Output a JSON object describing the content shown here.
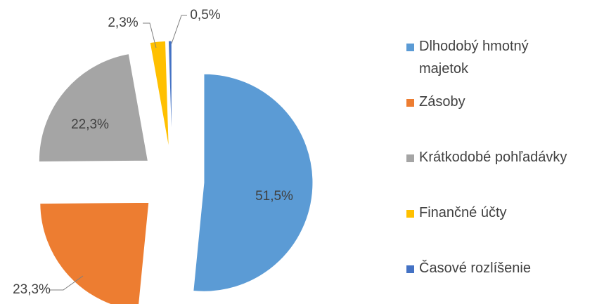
{
  "chart_data": {
    "type": "pie",
    "categories": [
      "Dlhodobý hmotný majetok",
      "Zásoby",
      "Krátkodobé pohľadávky",
      "Finančné účty",
      "Časové rozlíšenie"
    ],
    "values": [
      51.5,
      23.3,
      22.3,
      2.3,
      0.5
    ],
    "value_labels": [
      "51,5%",
      "23,3%",
      "22,3%",
      "2,3%",
      "0,5%"
    ],
    "colors": [
      "#5b9bd5",
      "#ed7d31",
      "#a5a5a5",
      "#ffc000",
      "#4472c4"
    ],
    "legend": "right"
  }
}
